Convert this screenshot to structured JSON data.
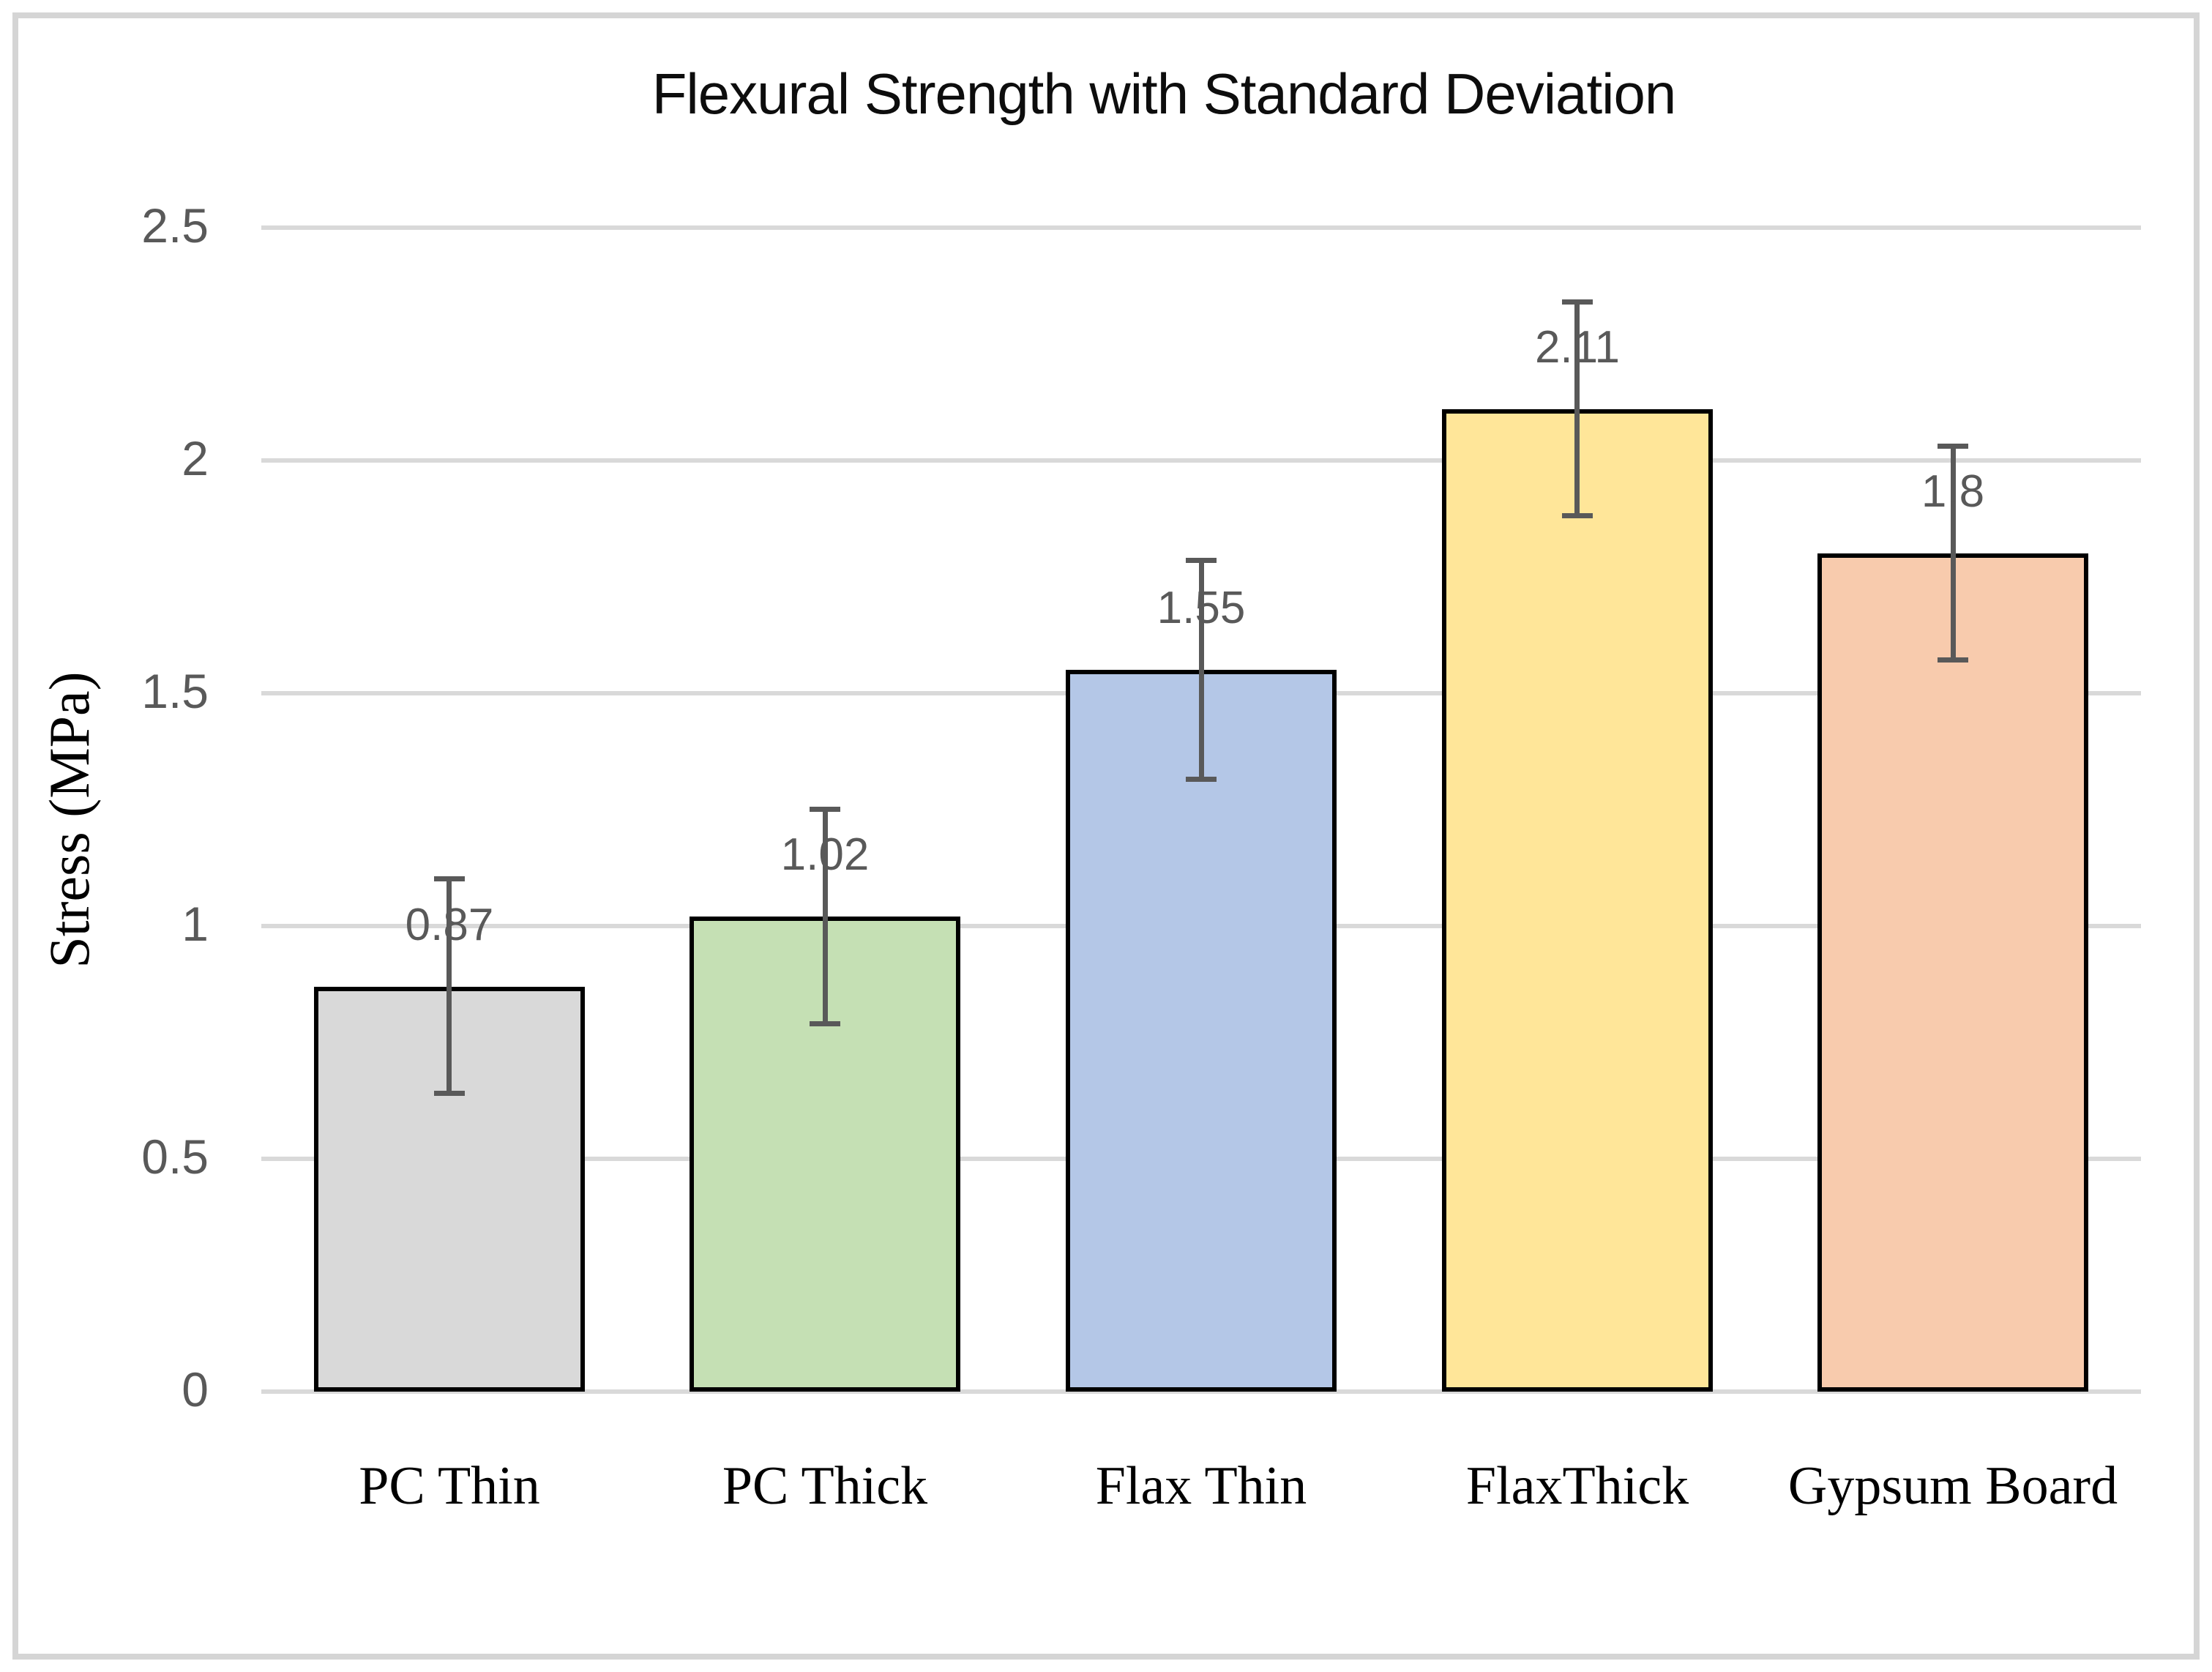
{
  "chart_data": {
    "type": "bar",
    "title": "Flexural Strength with Standard Deviation",
    "ylabel": "Stress (MPa)",
    "xlabel": "",
    "categories": [
      "PC Thin",
      "PC Thick",
      "Flax Thin",
      "FlaxThick",
      "Gypsum Board"
    ],
    "values": [
      0.87,
      1.02,
      1.55,
      2.11,
      1.8
    ],
    "data_labels": [
      "0.87",
      "1.02",
      "1.55",
      "2.11",
      "1.8"
    ],
    "error_bars": [
      0.23,
      0.23,
      0.235,
      0.23,
      0.23
    ],
    "bar_colors": [
      "#D9D9D9",
      "#C5E0B4",
      "#B4C7E7",
      "#FFE699",
      "#F8CBAD"
    ],
    "bar_border_color": "#000000",
    "error_bar_color": "#595959",
    "data_label_color": "#595959",
    "tick_label_color": "#595959",
    "title_color": "#0d0d0d",
    "grid_color": "#D9D9D9",
    "frame_color": "#D5D5D5",
    "ylim": [
      0,
      2.5
    ],
    "yticks": [
      0,
      0.5,
      1,
      1.5,
      2,
      2.5
    ],
    "ytick_labels": [
      "0",
      "0.5",
      "1",
      "1.5",
      "2",
      "2.5"
    ],
    "grid": "horizontal gridlines on",
    "legend": "none"
  }
}
